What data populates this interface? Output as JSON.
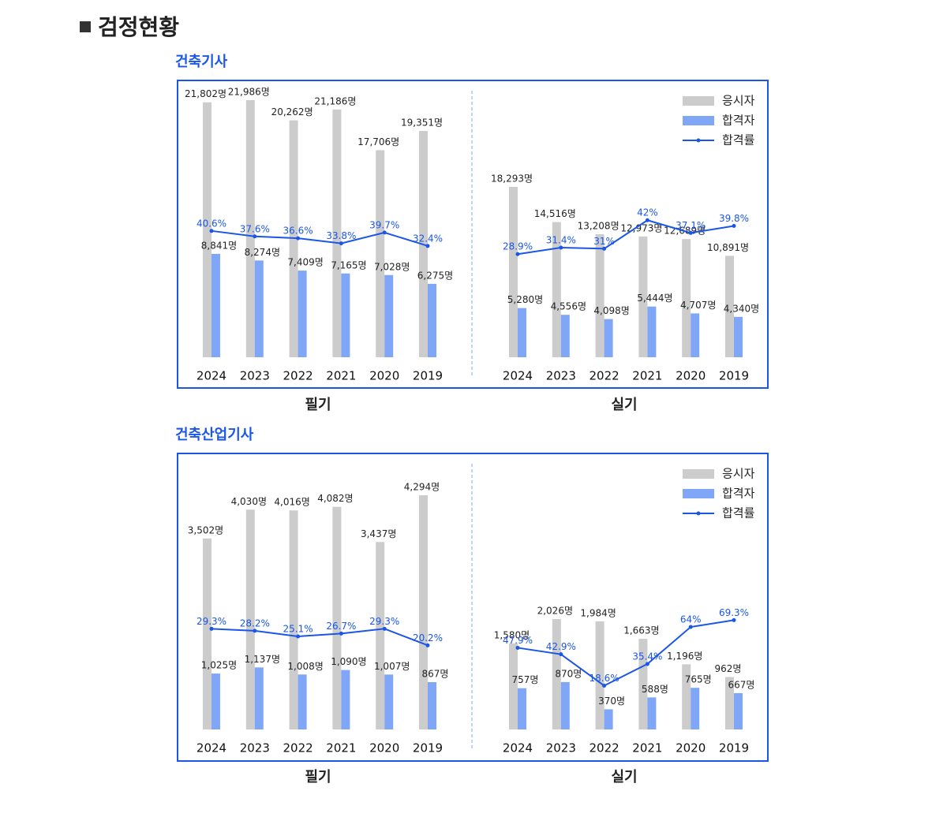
{
  "header": {
    "title": "검정현황"
  },
  "sections": [
    {
      "title": "건축기사"
    },
    {
      "title": "건축산업기사"
    }
  ],
  "chart_data": [
    {
      "type": "bar",
      "title": "필기",
      "legend": false,
      "categories": [
        "2024",
        "2023",
        "2022",
        "2021",
        "2020",
        "2019"
      ],
      "series": [
        {
          "name": "응시자",
          "color": "#cccccc",
          "values": [
            21802,
            21986,
            20262,
            21186,
            17706,
            19351
          ],
          "value_labels": [
            "21,802명",
            "21,986명",
            "20,262명",
            "21,186명",
            "17,706명",
            "19,351명"
          ]
        },
        {
          "name": "합격자",
          "color": "#7fa6f7",
          "values": [
            8841,
            8274,
            7409,
            7165,
            7028,
            6275
          ],
          "value_labels": [
            "8,841명",
            "8,274명",
            "7,409명",
            "7,165명",
            "7,028명",
            "6,275명"
          ]
        },
        {
          "name": "합격률",
          "type": "line",
          "axis": "y2",
          "color": "#1a56e8",
          "values": [
            40.6,
            37.6,
            36.6,
            33.8,
            39.7,
            32.4
          ],
          "value_labels": [
            "40.6%",
            "37.6%",
            "36.6%",
            "33.8%",
            "39.7%",
            "32.4%"
          ]
        }
      ]
    },
    {
      "type": "bar",
      "title": "실기",
      "legend": true,
      "categories": [
        "2024",
        "2023",
        "2022",
        "2021",
        "2020",
        "2019"
      ],
      "series": [
        {
          "name": "응시자",
          "color": "#cccccc",
          "values": [
            18293,
            14516,
            13208,
            12973,
            12689,
            10891
          ],
          "value_labels": [
            "18,293명",
            "14,516명",
            "13,208명",
            "12,973명",
            "12,689명",
            "10,891명"
          ]
        },
        {
          "name": "합격자",
          "color": "#7fa6f7",
          "values": [
            5280,
            4556,
            4098,
            5444,
            4707,
            4340
          ],
          "value_labels": [
            "5,280명",
            "4,556명",
            "4,098명",
            "5,444명",
            "4,707명",
            "4,340명"
          ]
        },
        {
          "name": "합격률",
          "type": "line",
          "axis": "y2",
          "color": "#1a56e8",
          "values": [
            28.9,
            31.4,
            31,
            42,
            37.1,
            39.8
          ],
          "value_labels": [
            "28.9%",
            "31.4%",
            "31%",
            "42%",
            "37.1%",
            "39.8%"
          ]
        }
      ]
    },
    {
      "type": "bar",
      "title": "필기",
      "legend": false,
      "categories": [
        "2024",
        "2023",
        "2022",
        "2021",
        "2020",
        "2019"
      ],
      "series": [
        {
          "name": "응시자",
          "color": "#cccccc",
          "values": [
            3502,
            4030,
            4016,
            4082,
            3437,
            4294
          ],
          "value_labels": [
            "3,502명",
            "4,030명",
            "4,016명",
            "4,082명",
            "3,437명",
            "4,294명"
          ]
        },
        {
          "name": "합격자",
          "color": "#7fa6f7",
          "values": [
            1025,
            1137,
            1008,
            1090,
            1007,
            867
          ],
          "value_labels": [
            "1,025명",
            "1,137명",
            "1,008명",
            "1,090명",
            "1,007명",
            "867명"
          ]
        },
        {
          "name": "합격률",
          "type": "line",
          "axis": "y2",
          "color": "#1a56e8",
          "values": [
            29.3,
            28.2,
            25.1,
            26.7,
            29.3,
            20.2
          ],
          "value_labels": [
            "29.3%",
            "28.2%",
            "25.1%",
            "26.7%",
            "29.3%",
            "20.2%"
          ]
        }
      ]
    },
    {
      "type": "bar",
      "title": "실기",
      "legend": true,
      "categories": [
        "2024",
        "2023",
        "2022",
        "2021",
        "2020",
        "2019"
      ],
      "series": [
        {
          "name": "응시자",
          "color": "#cccccc",
          "values": [
            1580,
            2026,
            1984,
            1663,
            1196,
            962
          ],
          "value_labels": [
            "1,580명",
            "2,026명",
            "1,984명",
            "1,663명",
            "1,196명",
            "962명"
          ]
        },
        {
          "name": "합격자",
          "color": "#7fa6f7",
          "values": [
            757,
            870,
            370,
            588,
            765,
            667
          ],
          "value_labels": [
            "757명",
            "870명",
            "370명",
            "588명",
            "765명",
            "667명"
          ]
        },
        {
          "name": "합격률",
          "type": "line",
          "axis": "y2",
          "color": "#1a56e8",
          "values": [
            47.9,
            42.9,
            18.6,
            35.4,
            64,
            69.3
          ],
          "value_labels": [
            "47.9%",
            "42.9%",
            "18.6%",
            "35.4%",
            "64%",
            "69.3%"
          ]
        }
      ]
    }
  ]
}
